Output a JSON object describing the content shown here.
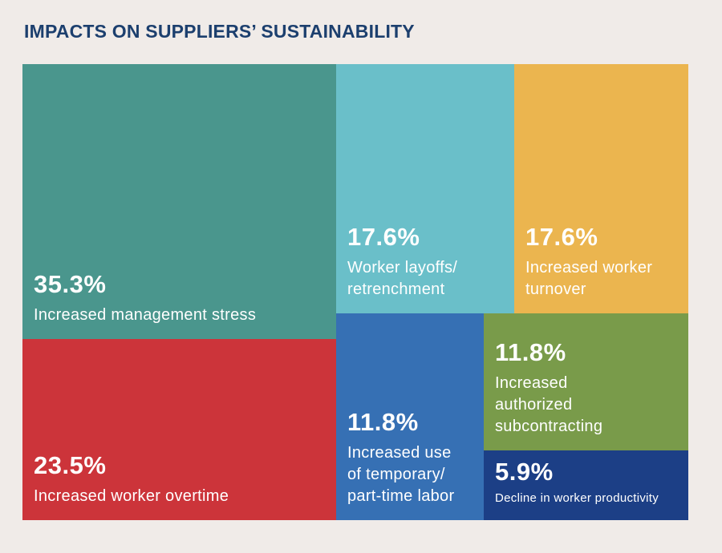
{
  "chart_data": {
    "type": "treemap",
    "title": "IMPACTS ON SUPPLIERS’ SUSTAINABILITY",
    "items": [
      {
        "value": 35.3,
        "value_label": "35.3%",
        "label": "Increased management stress",
        "color": "#4a968d"
      },
      {
        "value": 23.5,
        "value_label": "23.5%",
        "label": "Increased worker overtime",
        "color": "#cc343a"
      },
      {
        "value": 17.6,
        "value_label": "17.6%",
        "label": "Worker layoffs/\nretrenchment",
        "color": "#6abfc9"
      },
      {
        "value": 17.6,
        "value_label": "17.6%",
        "label": "Increased worker\nturnover",
        "color": "#ebb54f"
      },
      {
        "value": 11.8,
        "value_label": "11.8%",
        "label": "Increased use\nof temporary/\npart-time labor",
        "color": "#3670b4"
      },
      {
        "value": 11.8,
        "value_label": "11.8%",
        "label": "Increased\nauthorized\nsubcontracting",
        "color": "#799b4a"
      },
      {
        "value": 5.9,
        "value_label": "5.9%",
        "label": "Decline in worker productivity",
        "color": "#1c3f86"
      }
    ]
  }
}
